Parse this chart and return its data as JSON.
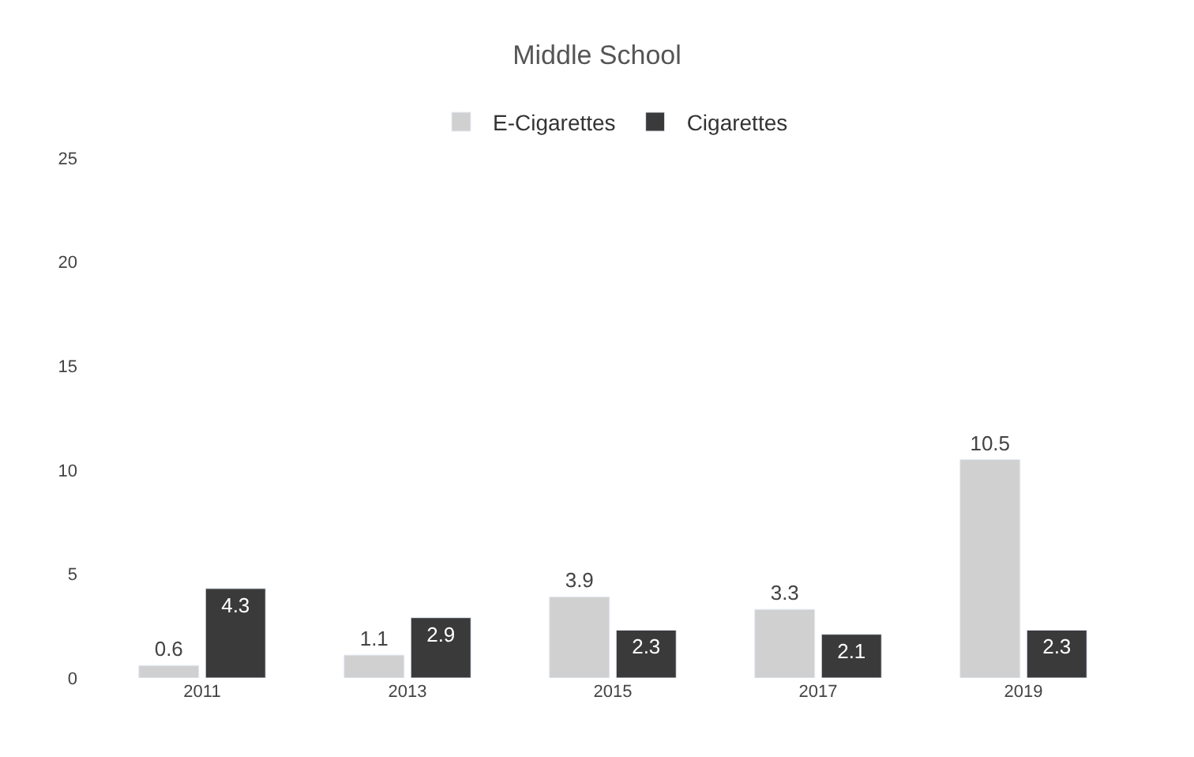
{
  "chart_data": {
    "type": "bar",
    "title": "Middle School",
    "categories": [
      "2011",
      "2013",
      "2015",
      "2017",
      "2019"
    ],
    "series": [
      {
        "name": "E-Cigarettes",
        "color": "#d0d0d0",
        "values": [
          0.6,
          1.1,
          3.9,
          3.3,
          10.5
        ]
      },
      {
        "name": "Cigarettes",
        "color": "#3a3a3a",
        "values": [
          4.3,
          2.9,
          2.3,
          2.1,
          2.3
        ]
      }
    ],
    "ylim": [
      0,
      25
    ],
    "yticks": [
      0,
      5,
      10,
      15,
      20,
      25
    ],
    "legend": "top",
    "data_labels": true
  }
}
